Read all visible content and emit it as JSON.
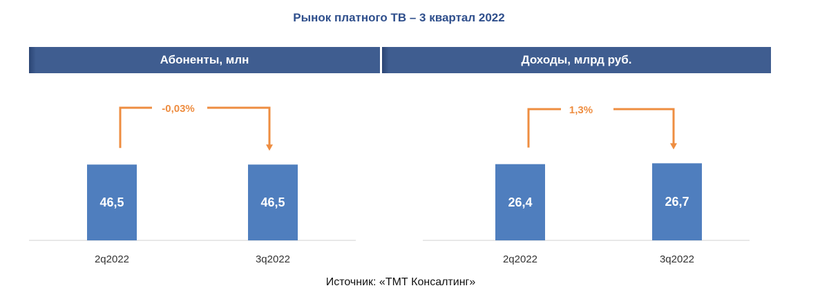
{
  "title": "Рынок платного ТВ – 3 квартал 2022",
  "source": "Источник: «ТМТ Консалтинг»",
  "colors": {
    "bar": "#4F7EBE",
    "header": "#3F5D90",
    "arrow": "#EE8D40",
    "title": "#2F4F8C"
  },
  "chart_data": [
    {
      "type": "bar",
      "title": "Абоненты, млн",
      "categories": [
        "2q2022",
        "3q2022"
      ],
      "values": [
        46.5,
        46.5
      ],
      "value_labels": [
        "46,5",
        "46,5"
      ],
      "change_label": "-0,03%",
      "xlabel": "",
      "ylabel": "",
      "grid": false
    },
    {
      "type": "bar",
      "title": "Доходы, млрд руб.",
      "categories": [
        "2q2022",
        "3q2022"
      ],
      "values": [
        26.4,
        26.7
      ],
      "value_labels": [
        "26,4",
        "26,7"
      ],
      "change_label": "1,3%",
      "xlabel": "",
      "ylabel": "",
      "grid": false
    }
  ]
}
